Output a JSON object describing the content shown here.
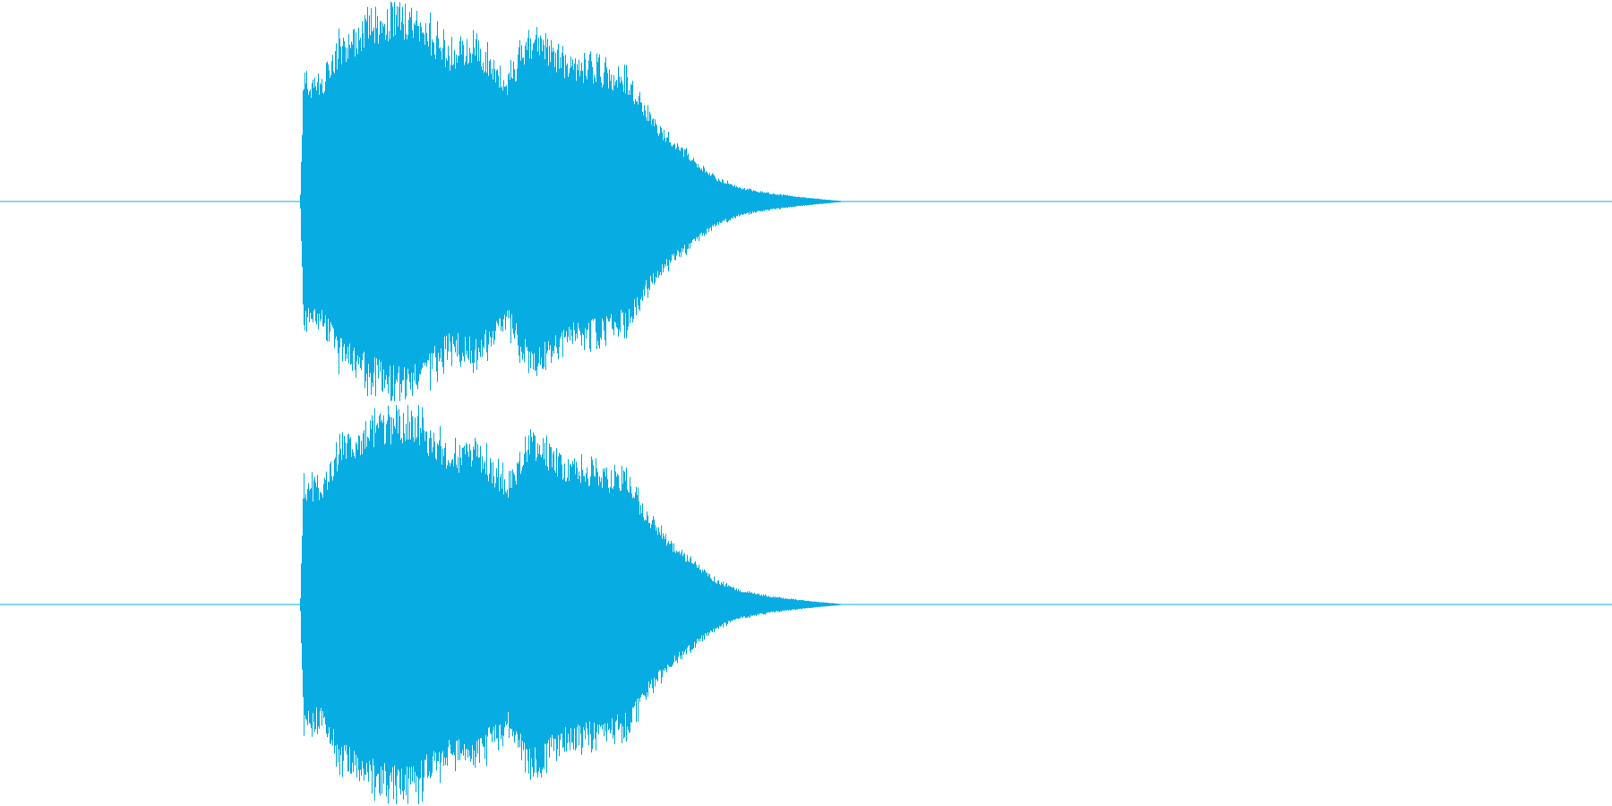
{
  "chart_data": {
    "type": "area",
    "title": "",
    "xlabel": "",
    "ylabel": "",
    "color": "#06ace2",
    "background": "#ffffff",
    "x_range": [
      0,
      1
    ],
    "y_range": [
      -1,
      1
    ],
    "grid": false,
    "legend": "none",
    "series": [
      {
        "channel": 1,
        "points": [
          {
            "t": 0.0,
            "amp": 0.0
          },
          {
            "t": 0.186,
            "amp": 0.0
          },
          {
            "t": 0.188,
            "amp": 0.62
          },
          {
            "t": 0.2,
            "amp": 0.62
          },
          {
            "t": 0.21,
            "amp": 0.82
          },
          {
            "t": 0.23,
            "amp": 0.93
          },
          {
            "t": 0.245,
            "amp": 0.97
          },
          {
            "t": 0.255,
            "amp": 0.98
          },
          {
            "t": 0.265,
            "amp": 0.9
          },
          {
            "t": 0.28,
            "amp": 0.78
          },
          {
            "t": 0.295,
            "amp": 0.83
          },
          {
            "t": 0.305,
            "amp": 0.72
          },
          {
            "t": 0.315,
            "amp": 0.64
          },
          {
            "t": 0.325,
            "amp": 0.81
          },
          {
            "t": 0.335,
            "amp": 0.87
          },
          {
            "t": 0.345,
            "amp": 0.75
          },
          {
            "t": 0.36,
            "amp": 0.72
          },
          {
            "t": 0.375,
            "amp": 0.68
          },
          {
            "t": 0.39,
            "amp": 0.64
          },
          {
            "t": 0.4,
            "amp": 0.48
          },
          {
            "t": 0.415,
            "amp": 0.33
          },
          {
            "t": 0.43,
            "amp": 0.22
          },
          {
            "t": 0.445,
            "amp": 0.12
          },
          {
            "t": 0.46,
            "amp": 0.07
          },
          {
            "t": 0.48,
            "amp": 0.04
          },
          {
            "t": 0.5,
            "amp": 0.02
          },
          {
            "t": 0.525,
            "amp": 0.0
          },
          {
            "t": 1.0,
            "amp": 0.0
          }
        ]
      },
      {
        "channel": 2,
        "points": [
          {
            "t": 0.0,
            "amp": 0.0
          },
          {
            "t": 0.186,
            "amp": 0.0
          },
          {
            "t": 0.188,
            "amp": 0.62
          },
          {
            "t": 0.2,
            "amp": 0.62
          },
          {
            "t": 0.21,
            "amp": 0.82
          },
          {
            "t": 0.23,
            "amp": 0.93
          },
          {
            "t": 0.245,
            "amp": 0.97
          },
          {
            "t": 0.255,
            "amp": 0.98
          },
          {
            "t": 0.265,
            "amp": 0.9
          },
          {
            "t": 0.28,
            "amp": 0.78
          },
          {
            "t": 0.295,
            "amp": 0.83
          },
          {
            "t": 0.305,
            "amp": 0.72
          },
          {
            "t": 0.315,
            "amp": 0.64
          },
          {
            "t": 0.325,
            "amp": 0.81
          },
          {
            "t": 0.335,
            "amp": 0.87
          },
          {
            "t": 0.345,
            "amp": 0.75
          },
          {
            "t": 0.36,
            "amp": 0.72
          },
          {
            "t": 0.375,
            "amp": 0.68
          },
          {
            "t": 0.39,
            "amp": 0.64
          },
          {
            "t": 0.4,
            "amp": 0.48
          },
          {
            "t": 0.415,
            "amp": 0.33
          },
          {
            "t": 0.43,
            "amp": 0.22
          },
          {
            "t": 0.445,
            "amp": 0.12
          },
          {
            "t": 0.46,
            "amp": 0.07
          },
          {
            "t": 0.48,
            "amp": 0.04
          },
          {
            "t": 0.5,
            "amp": 0.02
          },
          {
            "t": 0.525,
            "amp": 0.0
          },
          {
            "t": 1.0,
            "amp": 0.0
          }
        ]
      }
    ]
  }
}
